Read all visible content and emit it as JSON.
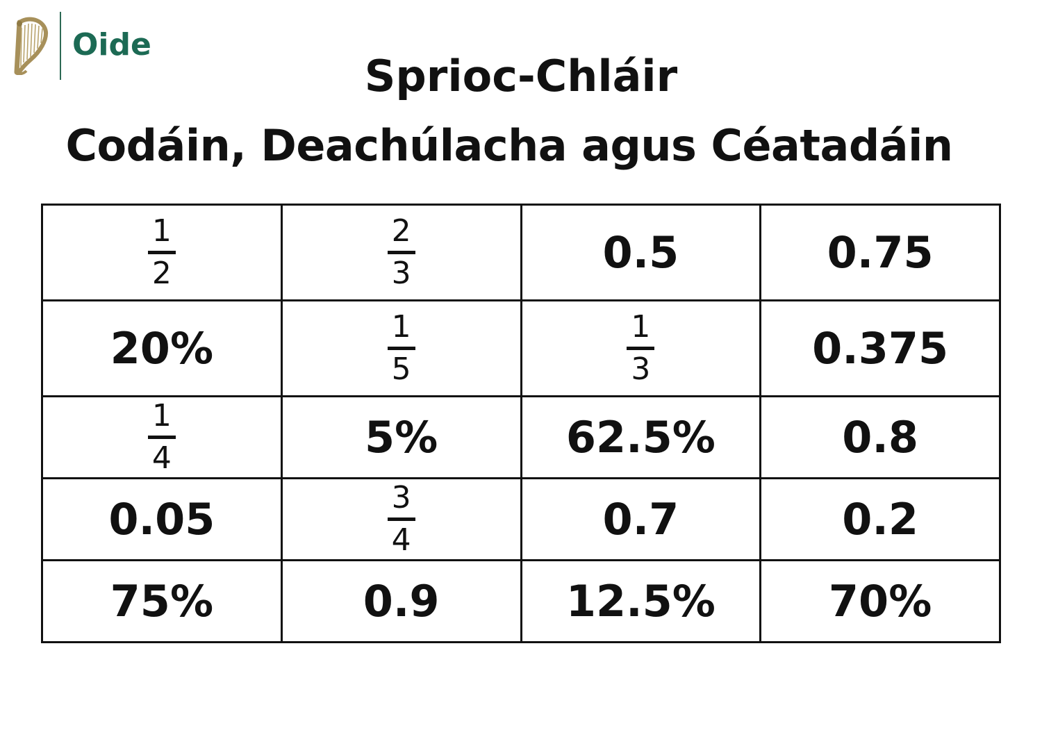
{
  "logo": {
    "brand": "Oide",
    "emblem": "harp-icon",
    "brand_color": "#1c6a54"
  },
  "title": "Sprioc-Chláir",
  "subtitle": "Codáin, Deachúlacha agus Céatadáin",
  "table": {
    "rows": [
      [
        {
          "num": "1",
          "den": "2"
        },
        {
          "num": "2",
          "den": "3"
        },
        {
          "text": "0.5"
        },
        {
          "text": "0.75"
        }
      ],
      [
        {
          "text": "20%"
        },
        {
          "num": "1",
          "den": "5"
        },
        {
          "num": "1",
          "den": "3"
        },
        {
          "text": "0.375"
        }
      ],
      [
        {
          "num": "1",
          "den": "4"
        },
        {
          "text": "5%"
        },
        {
          "text": "62.5%"
        },
        {
          "text": "0.8"
        }
      ],
      [
        {
          "text": "0.05"
        },
        {
          "num": "3",
          "den": "4"
        },
        {
          "text": "0.7"
        },
        {
          "text": "0.2"
        }
      ],
      [
        {
          "text": "75%"
        },
        {
          "text": "0.9"
        },
        {
          "text": "12.5%"
        },
        {
          "text": "70%"
        }
      ]
    ]
  }
}
